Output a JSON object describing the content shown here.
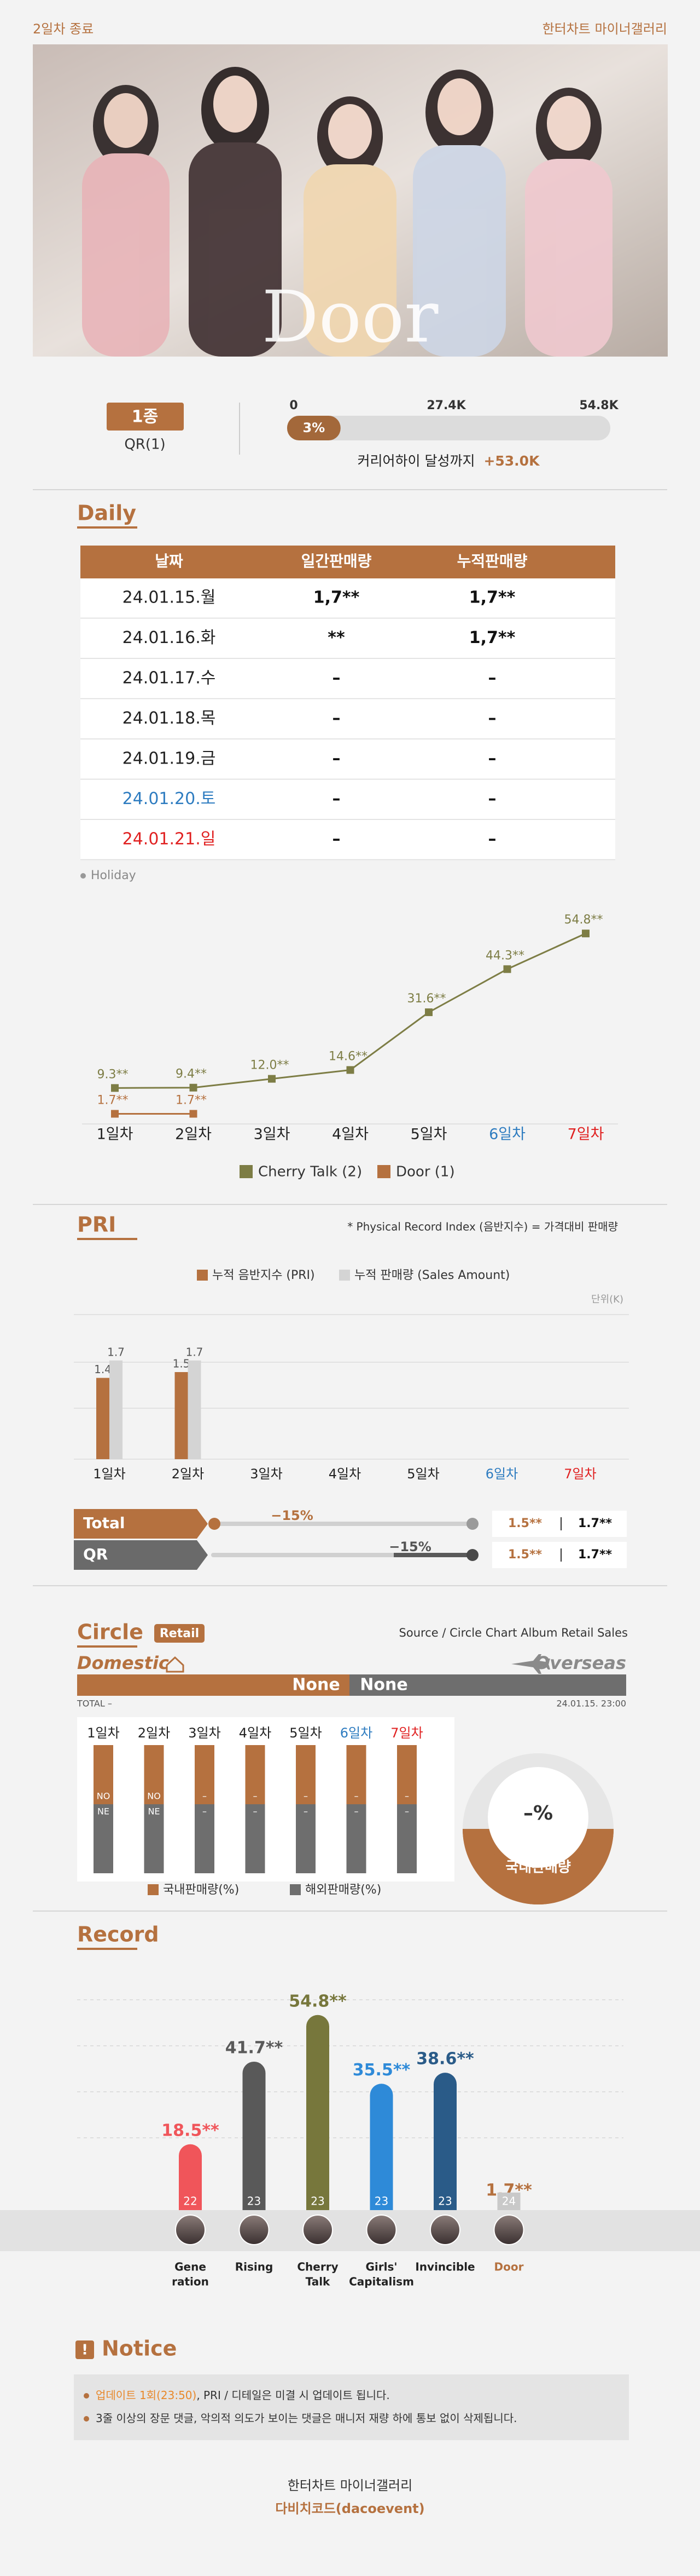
{
  "header": {
    "status": "2일차 종료",
    "source": "한터차트 마이너갤러리"
  },
  "banner": {
    "title": "Door"
  },
  "version": {
    "label": "1종",
    "detail": "QR(1)"
  },
  "progress": {
    "ticks": [
      0,
      {
        "value": 27400,
        "label": "27.4K"
      },
      {
        "value": 54800,
        "label": "54.8K"
      }
    ],
    "percent": 3,
    "percent_label": "3%",
    "caption": "커리어하이 달성까지",
    "remaining": "+53.0K"
  },
  "daily": {
    "title": "Daily",
    "table": {
      "header": [
        "날짜",
        "일간판매량",
        "누적판매량"
      ],
      "rows": [
        [
          "24.01.15.월",
          "1,7**",
          "1,7**"
        ],
        [
          "24.01.16.화",
          "**",
          "1,7**"
        ],
        [
          "24.01.17.수",
          "–",
          "–"
        ],
        [
          "24.01.18.목",
          "–",
          "–"
        ],
        [
          "24.01.19.금",
          "–",
          "–"
        ],
        [
          "24.01.20.토",
          "–",
          "–"
        ],
        [
          "24.01.21.일",
          "–",
          "–"
        ]
      ]
    },
    "date_colors": [
      "#222",
      "#222",
      "#222",
      "#222",
      "#222",
      "#2e7cc0",
      "#e02020"
    ],
    "holiday_note": "Holiday"
  },
  "chart_data": [
    {
      "type": "line",
      "categories": [
        "1일차",
        "2일차",
        "3일차",
        "4일차",
        "5일차",
        "6일차",
        "7일차"
      ],
      "category_colors": [
        "#222",
        "#222",
        "#222",
        "#222",
        "#222",
        "#2e7cc0",
        "#e02020"
      ],
      "ylim": [
        0,
        60
      ],
      "series": [
        {
          "name": "Cherry Talk (2)",
          "color": "#7d7d45",
          "values": [
            9.3,
            9.4,
            12.0,
            14.6,
            31.6,
            44.3,
            54.8
          ],
          "value_labels": [
            "9.3**",
            "9.4**",
            "12.0**",
            "14.6**",
            "31.6**",
            "44.3**",
            "54.8**"
          ]
        },
        {
          "name": "Door (1)",
          "color": "#b5713f",
          "values": [
            1.7,
            1.7,
            null,
            null,
            null,
            null,
            null
          ],
          "value_labels": [
            "1.7**",
            "1.7**",
            null,
            null,
            null,
            null,
            null
          ]
        }
      ]
    },
    {
      "type": "bar",
      "categories": [
        "1일차",
        "2일차",
        "3일차",
        "4일차",
        "5일차",
        "6일차",
        "7일차"
      ],
      "category_colors": [
        "#222",
        "#222",
        "#222",
        "#222",
        "#222",
        "#2e7cc0",
        "#e02020"
      ],
      "ylim": [
        0,
        2.5
      ],
      "series": [
        {
          "name": "누적 음반지수 (PRI)",
          "color": "#b5713f",
          "values": [
            1.4,
            1.5,
            null,
            null,
            null,
            null,
            null
          ]
        },
        {
          "name": "누적 판매량 (Sales Amount)",
          "color": "#d4d4d4",
          "values": [
            1.7,
            1.7,
            null,
            null,
            null,
            null,
            null
          ]
        }
      ]
    },
    {
      "type": "bar",
      "title": "Record",
      "categories": [
        [
          "Gene",
          "ration"
        ],
        [
          "Rising"
        ],
        [
          "Cherry",
          "Talk"
        ],
        [
          "Girls'",
          "Capitalism"
        ],
        [
          "Invincible"
        ],
        [
          "Door"
        ]
      ],
      "ylim": [
        0,
        60
      ],
      "values": [
        18.5,
        41.7,
        54.8,
        35.5,
        38.6,
        1.7
      ],
      "value_labels": [
        "18.5**",
        "41.7**",
        "54.8**",
        "35.5**",
        "38.6**",
        "1.7**"
      ],
      "counts": [
        22,
        23,
        23,
        23,
        23,
        24
      ],
      "colors": [
        "#f0555a",
        "#595959",
        "#77773c",
        "#2e8ad8",
        "#2a5b88",
        "#c9c9c9"
      ],
      "label_colors": [
        "#f0555a",
        "#595959",
        "#77773c",
        "#2e8ad8",
        "#2a5b88",
        "#b5713f"
      ]
    }
  ],
  "pri": {
    "title": "PRI",
    "note": "* Physical Record Index (음반지수) = 가격대비 판매량",
    "unit": "단위(K)",
    "rows": [
      {
        "label": "Total",
        "change": -15,
        "change_label": "−15%",
        "pri": "1.5**",
        "sales": "1.7**"
      },
      {
        "label": "QR",
        "change": -15,
        "change_label": "−15%",
        "pri": "1.5**",
        "sales": "1.7**"
      }
    ]
  },
  "circle": {
    "title": "Circle",
    "badge": "Retail",
    "source": "Source / Circle Chart Album Retail Sales",
    "domestic": "Domestic",
    "overseas": "Overseas",
    "domestic_value": "None",
    "overseas_value": "None",
    "total": "TOTAL –",
    "updated": "24.01.15. 23:00",
    "days": [
      "1일차",
      "2일차",
      "3일차",
      "4일차",
      "5일차",
      "6일차",
      "7일차"
    ],
    "domestic_labels": [
      "NO",
      "NO",
      "–",
      "–",
      "–",
      "–",
      "–"
    ],
    "overseas_labels": [
      "NE",
      "NE",
      "–",
      "–",
      "–",
      "–",
      "–"
    ],
    "legend": [
      "국내판매량(%)",
      "해외판매량(%)"
    ],
    "donut_value": "–%",
    "donut_label": "국내판매량"
  },
  "notice": {
    "title": "Notice",
    "items": [
      [
        "업데이트 1회(23:50)",
        ", PRI / 디테일은 미결 시 업데이트 됩니다."
      ],
      [
        "3줄 이상의 장문 댓글, 악의적 의도가 보이는 댓글은 매니저 재량 하에 통보 없이 삭제됩니다."
      ]
    ]
  },
  "footer": {
    "line1": "한터차트 마이너갤러리",
    "line2": "다비치코드(dacoevent)"
  }
}
